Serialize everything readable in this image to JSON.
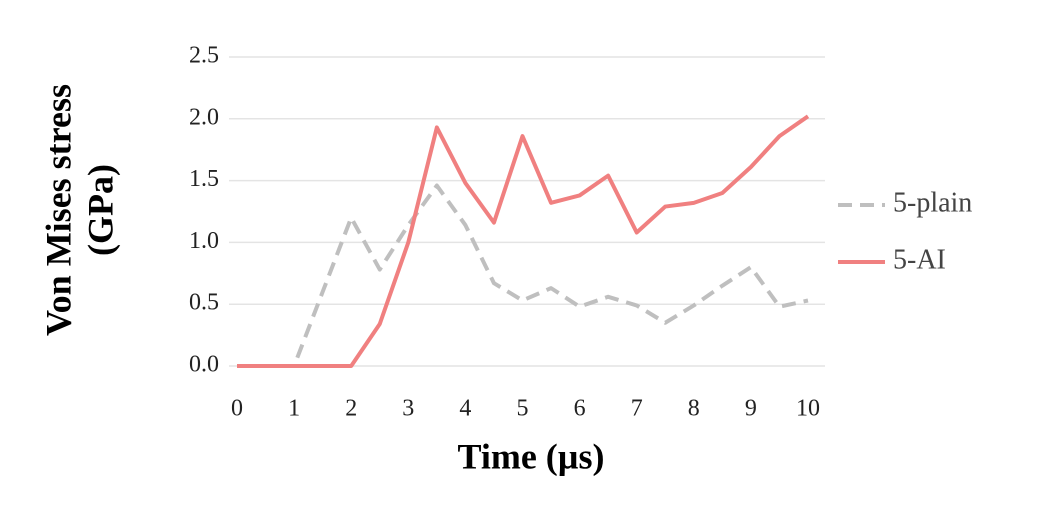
{
  "chart_data": {
    "type": "line",
    "x_label": "Time (µs)",
    "y_label": [
      "Von Mises stress",
      "(GPa)"
    ],
    "x": [
      0,
      0.5,
      1,
      1.5,
      2,
      2.5,
      3,
      3.5,
      4,
      4.5,
      5,
      5.5,
      6,
      6.5,
      7,
      7.5,
      8,
      8.5,
      9,
      9.5,
      10
    ],
    "series": [
      {
        "name": "5-plain",
        "color": "#bfbfbf",
        "dash": true,
        "values": [
          0,
          0,
          0,
          0.6,
          1.2,
          0.78,
          1.14,
          1.46,
          1.14,
          0.67,
          0.53,
          0.63,
          0.48,
          0.56,
          0.49,
          0.35,
          0.49,
          0.65,
          0.8,
          0.48,
          0.53
        ]
      },
      {
        "name": "5-AI",
        "color": "#f08080",
        "dash": false,
        "values": [
          0,
          0,
          0,
          0,
          0,
          0.34,
          1.0,
          1.93,
          1.48,
          1.16,
          1.86,
          1.32,
          1.38,
          1.54,
          1.08,
          1.29,
          1.32,
          1.4,
          1.61,
          1.86,
          2.02
        ]
      }
    ],
    "xlim": [
      0,
      10
    ],
    "ylim": [
      0,
      2.5
    ],
    "xticks": [
      0,
      1,
      2,
      3,
      4,
      5,
      6,
      7,
      8,
      9,
      10
    ],
    "yticks": [
      {
        "value": 0,
        "label": "0.0"
      },
      0.5,
      {
        "value": 1,
        "label": "1.0"
      },
      1.5,
      {
        "value": 2,
        "label": "2.0"
      },
      2.5
    ],
    "grid": true,
    "legend": "right"
  }
}
